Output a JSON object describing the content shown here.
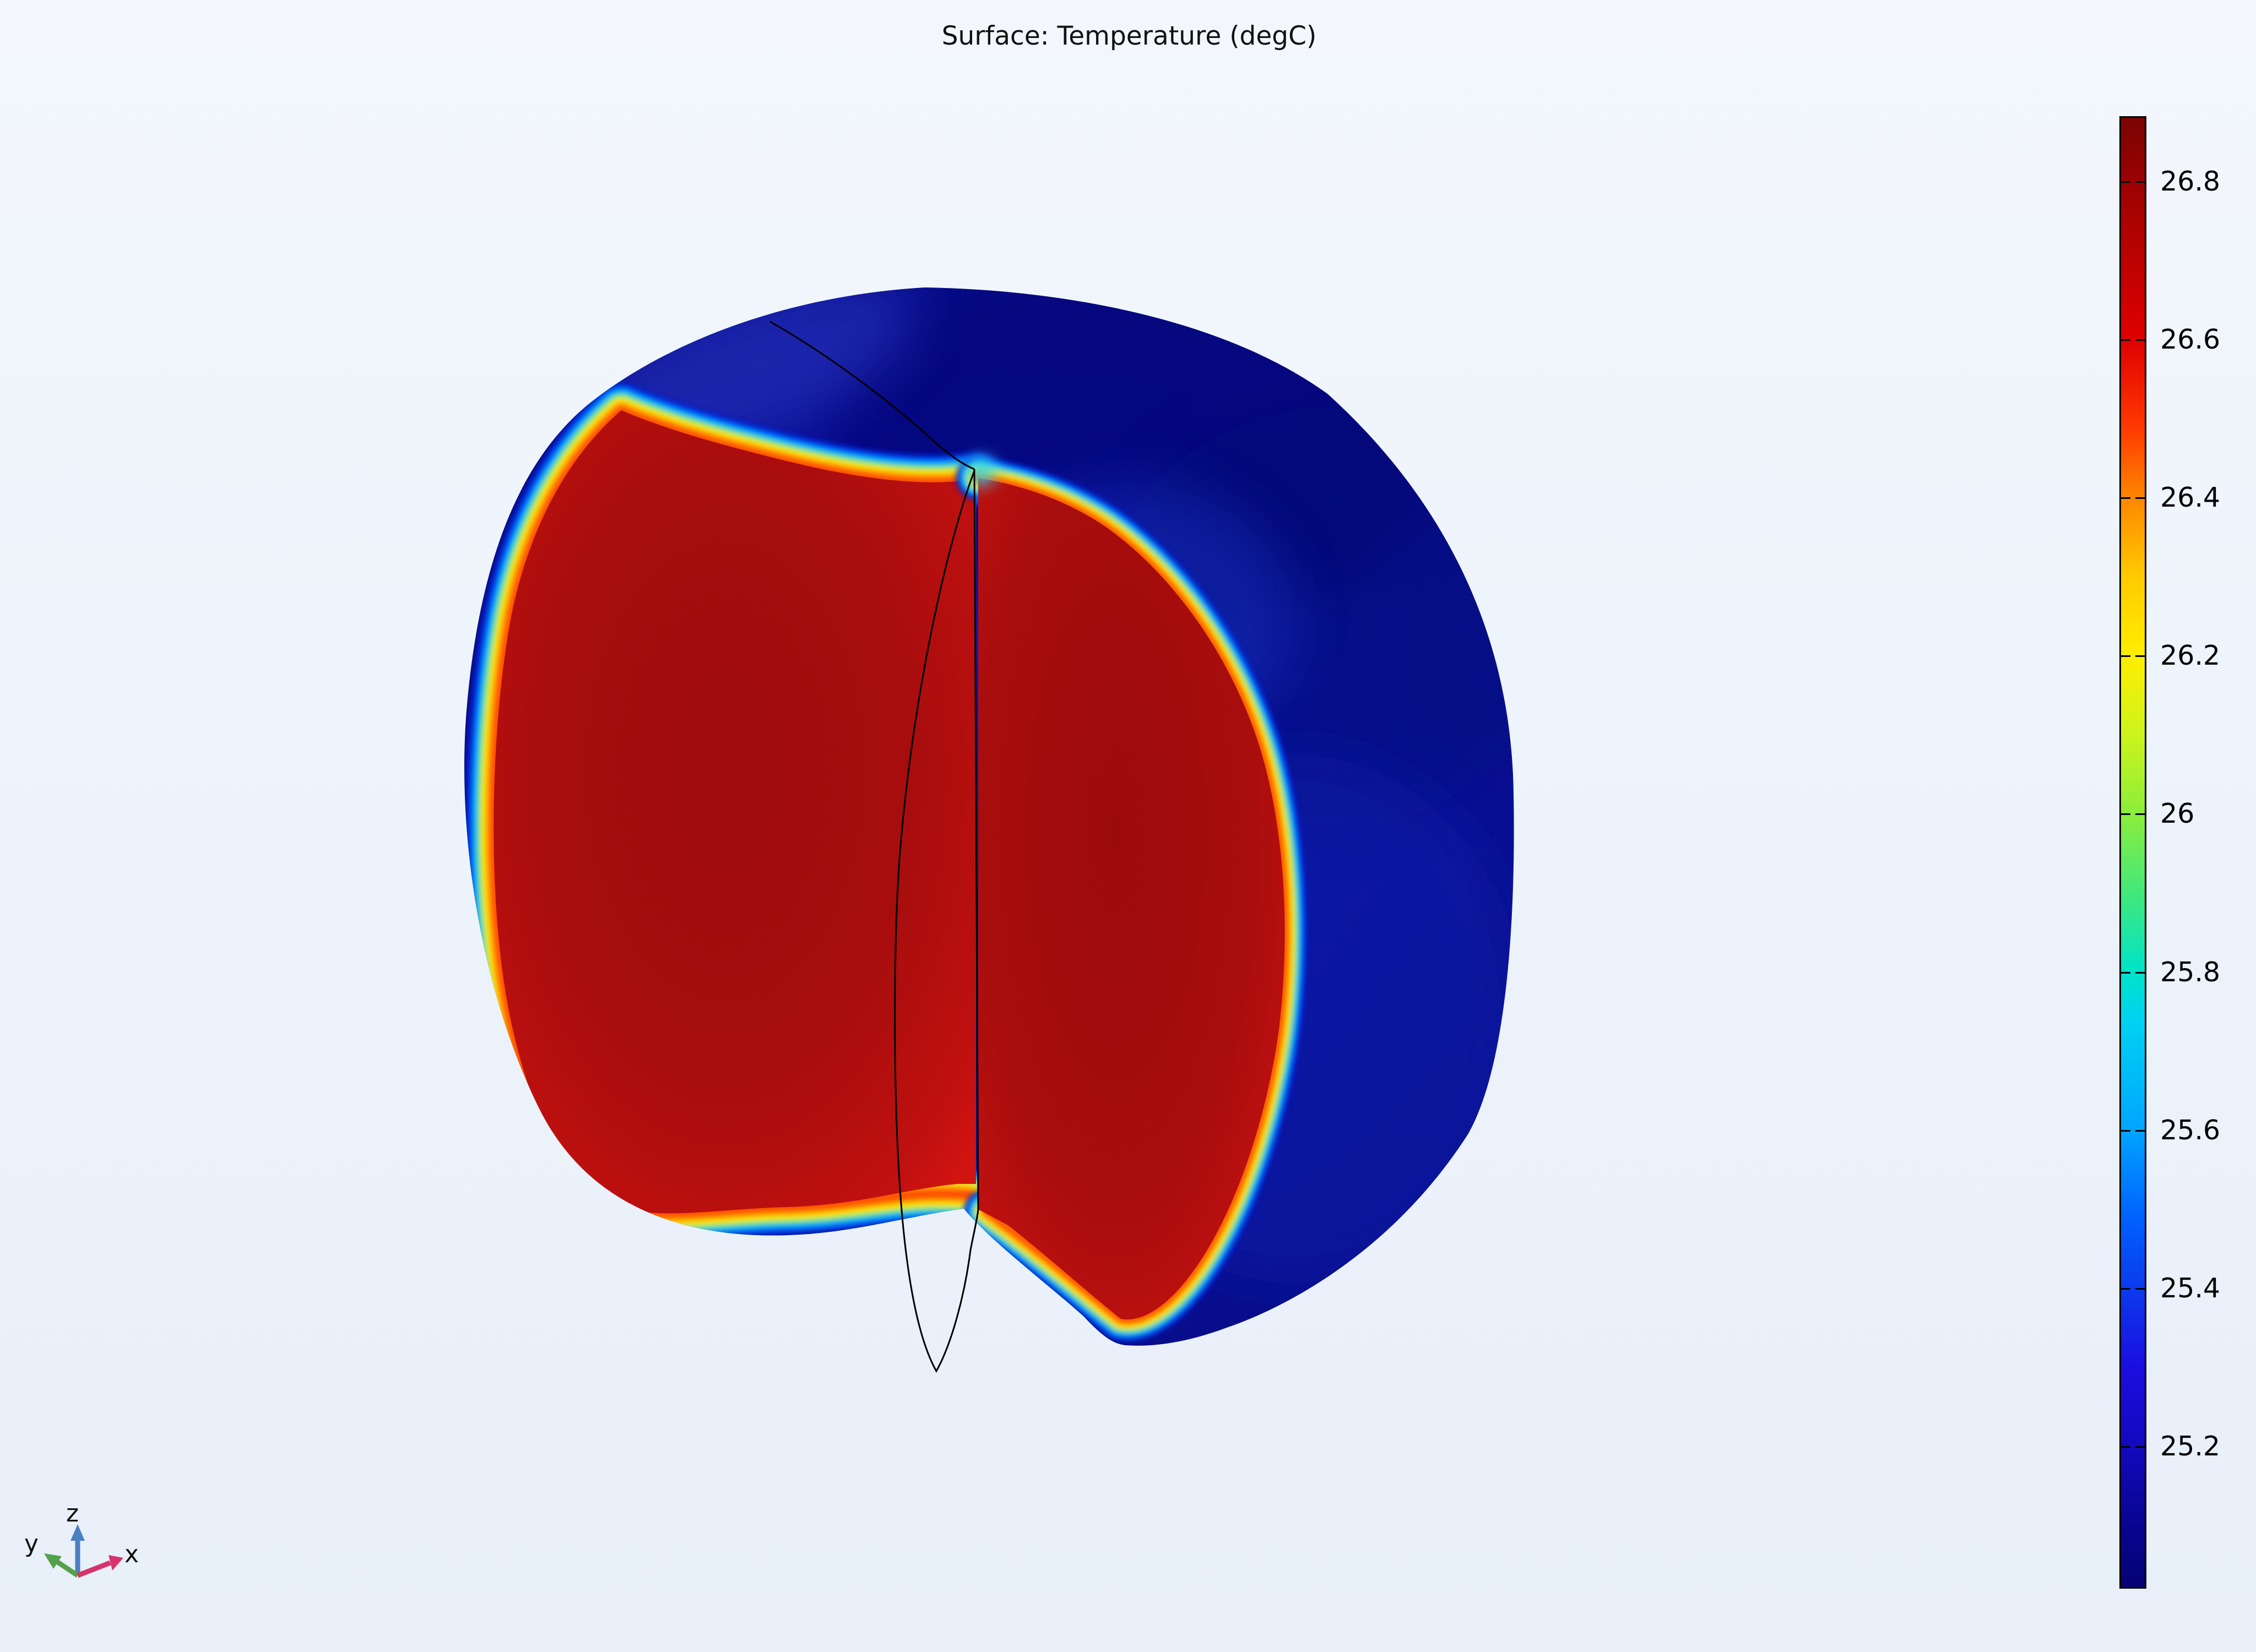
{
  "title": "Surface: Temperature (degC)",
  "colorbar": {
    "tick_labels": [
      "26.8",
      "26.6",
      "26.4",
      "26.2",
      "26",
      "25.8",
      "25.6",
      "25.4",
      "25.2"
    ],
    "border_color": "#000000"
  },
  "axis_triad": {
    "x_label": "x",
    "y_label": "y",
    "z_label": "z",
    "x_color": "#d6336c",
    "y_color": "#55a04a",
    "z_color": "#4a7fc0"
  },
  "chart_data": {
    "type": "heatmap",
    "plot_kind": "3d-surface-temperature-plot",
    "title": "Surface: Temperature (degC)",
    "quantity": "Temperature",
    "unit": "degC",
    "geometry": "apple-shaped solid sphere with quarter cutout revealing hot interior cross-sections",
    "legend_position": "right",
    "colorbar_tick_values": [
      26.8,
      26.6,
      26.4,
      26.2,
      26.0,
      25.8,
      25.6,
      25.4,
      25.2
    ],
    "colorbar_range_approx": [
      25.0,
      26.9
    ],
    "surface_values": {
      "outer_skin_approx": 25.1,
      "cut_face_interior_approx": 26.85,
      "transition_rim": "rainbow band ~26.6 down to ~25.2 across thin boundary layer"
    },
    "colormap": "rainbow (dark red to dark navy)",
    "gradient_stops": [
      [
        0,
        "#7a0403"
      ],
      [
        4.5,
        "#9c0202"
      ],
      [
        15.2,
        "#e00000"
      ],
      [
        21,
        "#ff3800"
      ],
      [
        26,
        "#ff8800"
      ],
      [
        31,
        "#ffc800"
      ],
      [
        36.6,
        "#ffee00"
      ],
      [
        42,
        "#ccf41c"
      ],
      [
        47.3,
        "#8cee3a"
      ],
      [
        53,
        "#3fe87d"
      ],
      [
        58,
        "#00e4c8"
      ],
      [
        61.5,
        "#00d2f2"
      ],
      [
        68.8,
        "#00a6ff"
      ],
      [
        75,
        "#0060ff"
      ],
      [
        79.5,
        "#0a3cee"
      ],
      [
        85,
        "#1b0ee0"
      ],
      [
        90.2,
        "#120ac0"
      ],
      [
        95,
        "#0a0596"
      ],
      [
        100,
        "#060273"
      ]
    ]
  }
}
